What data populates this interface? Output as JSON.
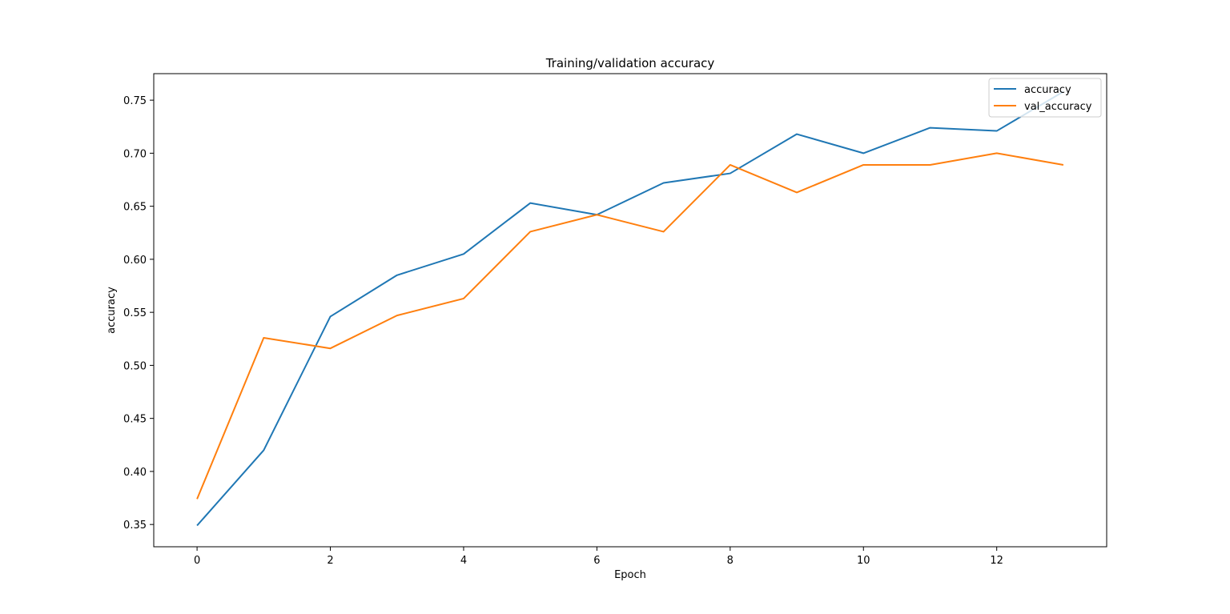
{
  "chart_data": {
    "type": "line",
    "title": "Training/validation accuracy",
    "xlabel": "Epoch",
    "ylabel": "accuracy",
    "x": [
      0,
      1,
      2,
      3,
      4,
      5,
      6,
      7,
      8,
      9,
      10,
      11,
      12,
      13
    ],
    "series": [
      {
        "name": "accuracy",
        "color": "#1f77b4",
        "values": [
          0.349,
          0.42,
          0.546,
          0.585,
          0.605,
          0.653,
          0.642,
          0.672,
          0.681,
          0.718,
          0.7,
          0.724,
          0.721,
          0.758
        ]
      },
      {
        "name": "val_accuracy",
        "color": "#ff7f0e",
        "values": [
          0.374,
          0.526,
          0.516,
          0.547,
          0.563,
          0.626,
          0.642,
          0.626,
          0.689,
          0.663,
          0.689,
          0.689,
          0.7,
          0.689
        ]
      }
    ],
    "xlim": [
      -0.65,
      13.65
    ],
    "ylim": [
      0.329,
      0.775
    ],
    "x_ticks": [
      0,
      2,
      4,
      6,
      8,
      10,
      12
    ],
    "x_tick_labels": [
      "0",
      "2",
      "4",
      "6",
      "8",
      "10",
      "12"
    ],
    "y_ticks": [
      0.35,
      0.4,
      0.45,
      0.5,
      0.55,
      0.6,
      0.65,
      0.7,
      0.75
    ],
    "y_tick_labels": [
      "0.35",
      "0.40",
      "0.45",
      "0.50",
      "0.55",
      "0.60",
      "0.65",
      "0.70",
      "0.75"
    ],
    "grid": false,
    "legend_position": "upper right"
  }
}
